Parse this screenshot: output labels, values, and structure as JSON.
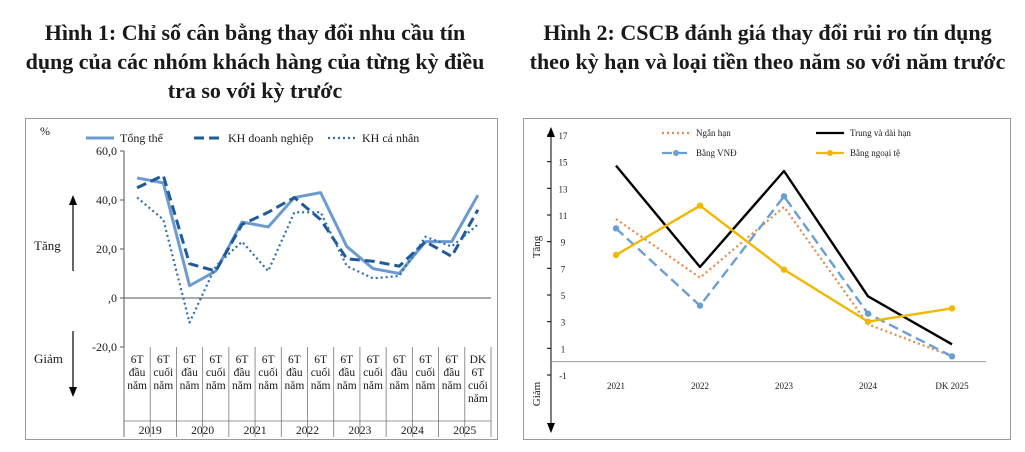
{
  "titles": {
    "figure1": "Hình 1:  Chỉ số cân bằng thay đổi nhu cầu tín dụng của các nhóm khách hàng của từng kỳ điều tra so với kỳ trước",
    "figure2": "Hình 2: CSCB đánh giá thay đổi rủi ro tín dụng theo kỳ hạn và loại tiền theo năm so với năm trước"
  },
  "chart_data": [
    {
      "type": "line",
      "title": "Hình 1:  Chỉ số cân bằng thay đổi nhu cầu tín dụng của các nhóm khách hàng của từng kỳ điều tra so với kỳ trước",
      "unit_label": "%",
      "up_label": "Tăng",
      "down_label": "Giảm",
      "ylim": [
        -20,
        60
      ],
      "yticks": [
        60,
        40,
        20,
        0,
        -20
      ],
      "ytick_labels": [
        "60,0",
        "40,0",
        "20,0",
        ",0",
        "-20,0"
      ],
      "categories": [
        [
          "6T",
          "đầu",
          "năm"
        ],
        [
          "6T",
          "cuối",
          "năm"
        ],
        [
          "6T",
          "đầu",
          "năm"
        ],
        [
          "6T",
          "cuối",
          "năm"
        ],
        [
          "6T",
          "đầu",
          "năm"
        ],
        [
          "6T",
          "cuối",
          "năm"
        ],
        [
          "6T",
          "đầu",
          "năm"
        ],
        [
          "6T",
          "cuối",
          "năm"
        ],
        [
          "6T",
          "đầu",
          "năm"
        ],
        [
          "6T",
          "cuối",
          "năm"
        ],
        [
          "6T",
          "đầu",
          "năm"
        ],
        [
          "6T",
          "cuối",
          "năm"
        ],
        [
          "6T",
          "đầu",
          "năm"
        ],
        [
          "DK",
          "6T",
          "cuối",
          "năm"
        ]
      ],
      "years": [
        "2019",
        "2020",
        "2021",
        "2022",
        "2023",
        "2024",
        "2025"
      ],
      "series": [
        {
          "name": "Tổng thể",
          "style": "solid",
          "color": "#6b9bd1",
          "values": [
            49,
            47,
            5,
            11,
            31,
            29,
            41,
            43,
            21,
            12,
            10,
            23,
            23,
            42
          ]
        },
        {
          "name": "KH doanh nghiệp",
          "style": "dash",
          "color": "#1f5b99",
          "values": [
            45,
            50,
            14,
            11,
            30,
            35,
            41,
            32,
            16,
            15,
            13,
            23,
            17,
            36
          ]
        },
        {
          "name": "KH cá nhân",
          "style": "dot",
          "color": "#2e6fb0",
          "values": [
            41,
            32,
            -10,
            13,
            23,
            11,
            35,
            35,
            13,
            8,
            9,
            25,
            21,
            30
          ]
        }
      ]
    },
    {
      "type": "line",
      "title": "Hình 2: CSCB đánh giá thay đổi rủi ro tín dụng theo kỳ hạn và loại tiền theo năm so với năm trước",
      "up_label": "Tăng",
      "down_label": "Giảm",
      "ylim": [
        -1,
        17
      ],
      "yticks": [
        17,
        15,
        13,
        11,
        9,
        7,
        5,
        3,
        1,
        -1
      ],
      "categories": [
        "2021",
        "2022",
        "2023",
        "2024",
        "DK 2025"
      ],
      "series": [
        {
          "name": "Ngắn hạn",
          "style": "dot",
          "color": "#e8884a",
          "values": [
            10.7,
            6.3,
            11.6,
            2.8,
            0.4
          ]
        },
        {
          "name": "Trung và dài hạn",
          "style": "solid",
          "color": "#000000",
          "values": [
            14.7,
            7.1,
            14.3,
            4.9,
            1.3
          ]
        },
        {
          "name": "Bằng VNĐ",
          "style": "dash",
          "color": "#6a9fd4",
          "values": [
            10,
            4.2,
            12.4,
            3.6,
            0.4
          ]
        },
        {
          "name": "Bằng ngoại tệ",
          "style": "solid",
          "color": "#f2b700",
          "values": [
            8,
            11.7,
            6.9,
            3,
            4
          ]
        }
      ]
    }
  ]
}
